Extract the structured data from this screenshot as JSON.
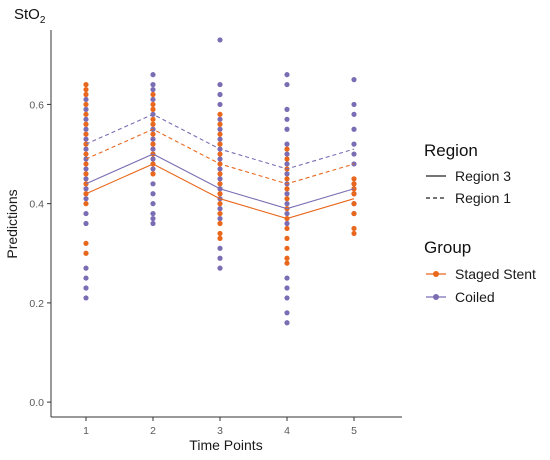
{
  "chart_data": {
    "type": "line",
    "title": "StO",
    "title_subscript": "2",
    "xlabel": "Time Points",
    "ylabel": "Predictions",
    "x_ticks": [
      "1",
      "2",
      "3",
      "4",
      "5"
    ],
    "y_ticks": [
      "0.0",
      "0.2",
      "0.4",
      "0.6"
    ],
    "ylim": [
      -0.03,
      0.75
    ],
    "grid": false,
    "legend_position": "right",
    "colors": {
      "staged_stent": "#E8671C",
      "coiled": "#7B6DB3"
    },
    "legends": {
      "region": {
        "title": "Region",
        "items": [
          "Region 3",
          "Region 1"
        ]
      },
      "group": {
        "title": "Group",
        "items": [
          "Staged Stent",
          "Coiled"
        ]
      }
    },
    "lines": [
      {
        "group": "Staged Stent",
        "region": "Region 3",
        "x": [
          1,
          2,
          3,
          4,
          5
        ],
        "y": [
          0.42,
          0.48,
          0.41,
          0.37,
          0.41
        ]
      },
      {
        "group": "Coiled",
        "region": "Region 3",
        "x": [
          1,
          2,
          3,
          4,
          5
        ],
        "y": [
          0.44,
          0.5,
          0.43,
          0.39,
          0.43
        ]
      },
      {
        "group": "Staged Stent",
        "region": "Region 1",
        "x": [
          1,
          2,
          3,
          4,
          5
        ],
        "y": [
          0.49,
          0.55,
          0.48,
          0.44,
          0.48
        ]
      },
      {
        "group": "Coiled",
        "region": "Region 1",
        "x": [
          1,
          2,
          3,
          4,
          5
        ],
        "y": [
          0.52,
          0.58,
          0.51,
          0.47,
          0.51
        ]
      }
    ],
    "points": {
      "Staged Stent": [
        {
          "x": 1,
          "y": 0.64
        },
        {
          "x": 1,
          "y": 0.63
        },
        {
          "x": 1,
          "y": 0.62
        },
        {
          "x": 1,
          "y": 0.6
        },
        {
          "x": 1,
          "y": 0.58
        },
        {
          "x": 1,
          "y": 0.56
        },
        {
          "x": 1,
          "y": 0.54
        },
        {
          "x": 1,
          "y": 0.52
        },
        {
          "x": 1,
          "y": 0.5
        },
        {
          "x": 1,
          "y": 0.48
        },
        {
          "x": 1,
          "y": 0.46
        },
        {
          "x": 1,
          "y": 0.44
        },
        {
          "x": 1,
          "y": 0.42
        },
        {
          "x": 1,
          "y": 0.4
        },
        {
          "x": 1,
          "y": 0.32
        },
        {
          "x": 1,
          "y": 0.3
        },
        {
          "x": 2,
          "y": 0.62
        },
        {
          "x": 2,
          "y": 0.6
        },
        {
          "x": 2,
          "y": 0.59
        },
        {
          "x": 2,
          "y": 0.57
        },
        {
          "x": 2,
          "y": 0.56
        },
        {
          "x": 2,
          "y": 0.54
        },
        {
          "x": 2,
          "y": 0.52
        },
        {
          "x": 2,
          "y": 0.5
        },
        {
          "x": 2,
          "y": 0.48
        },
        {
          "x": 2,
          "y": 0.46
        },
        {
          "x": 3,
          "y": 0.58
        },
        {
          "x": 3,
          "y": 0.56
        },
        {
          "x": 3,
          "y": 0.54
        },
        {
          "x": 3,
          "y": 0.52
        },
        {
          "x": 3,
          "y": 0.5
        },
        {
          "x": 3,
          "y": 0.48
        },
        {
          "x": 3,
          "y": 0.46
        },
        {
          "x": 3,
          "y": 0.44
        },
        {
          "x": 3,
          "y": 0.42
        },
        {
          "x": 3,
          "y": 0.4
        },
        {
          "x": 3,
          "y": 0.38
        },
        {
          "x": 3,
          "y": 0.36
        },
        {
          "x": 3,
          "y": 0.34
        },
        {
          "x": 3,
          "y": 0.33
        },
        {
          "x": 4,
          "y": 0.51
        },
        {
          "x": 4,
          "y": 0.49
        },
        {
          "x": 4,
          "y": 0.47
        },
        {
          "x": 4,
          "y": 0.45
        },
        {
          "x": 4,
          "y": 0.43
        },
        {
          "x": 4,
          "y": 0.41
        },
        {
          "x": 4,
          "y": 0.39
        },
        {
          "x": 4,
          "y": 0.37
        },
        {
          "x": 4,
          "y": 0.35
        },
        {
          "x": 4,
          "y": 0.33
        },
        {
          "x": 4,
          "y": 0.31
        },
        {
          "x": 4,
          "y": 0.29
        },
        {
          "x": 4,
          "y": 0.28
        },
        {
          "x": 5,
          "y": 0.45
        },
        {
          "x": 5,
          "y": 0.44
        },
        {
          "x": 5,
          "y": 0.43
        },
        {
          "x": 5,
          "y": 0.42
        },
        {
          "x": 5,
          "y": 0.4
        },
        {
          "x": 5,
          "y": 0.38
        },
        {
          "x": 5,
          "y": 0.35
        },
        {
          "x": 5,
          "y": 0.34
        }
      ],
      "Coiled": [
        {
          "x": 1,
          "y": 0.61
        },
        {
          "x": 1,
          "y": 0.59
        },
        {
          "x": 1,
          "y": 0.57
        },
        {
          "x": 1,
          "y": 0.55
        },
        {
          "x": 1,
          "y": 0.53
        },
        {
          "x": 1,
          "y": 0.51
        },
        {
          "x": 1,
          "y": 0.49
        },
        {
          "x": 1,
          "y": 0.47
        },
        {
          "x": 1,
          "y": 0.45
        },
        {
          "x": 1,
          "y": 0.43
        },
        {
          "x": 1,
          "y": 0.41
        },
        {
          "x": 1,
          "y": 0.38
        },
        {
          "x": 1,
          "y": 0.36
        },
        {
          "x": 1,
          "y": 0.27
        },
        {
          "x": 1,
          "y": 0.25
        },
        {
          "x": 1,
          "y": 0.23
        },
        {
          "x": 1,
          "y": 0.21
        },
        {
          "x": 2,
          "y": 0.66
        },
        {
          "x": 2,
          "y": 0.64
        },
        {
          "x": 2,
          "y": 0.63
        },
        {
          "x": 2,
          "y": 0.61
        },
        {
          "x": 2,
          "y": 0.58
        },
        {
          "x": 2,
          "y": 0.55
        },
        {
          "x": 2,
          "y": 0.53
        },
        {
          "x": 2,
          "y": 0.51
        },
        {
          "x": 2,
          "y": 0.49
        },
        {
          "x": 2,
          "y": 0.47
        },
        {
          "x": 2,
          "y": 0.44
        },
        {
          "x": 2,
          "y": 0.42
        },
        {
          "x": 2,
          "y": 0.4
        },
        {
          "x": 2,
          "y": 0.38
        },
        {
          "x": 2,
          "y": 0.37
        },
        {
          "x": 2,
          "y": 0.36
        },
        {
          "x": 3,
          "y": 0.73
        },
        {
          "x": 3,
          "y": 0.64
        },
        {
          "x": 3,
          "y": 0.62
        },
        {
          "x": 3,
          "y": 0.6
        },
        {
          "x": 3,
          "y": 0.57
        },
        {
          "x": 3,
          "y": 0.55
        },
        {
          "x": 3,
          "y": 0.53
        },
        {
          "x": 3,
          "y": 0.51
        },
        {
          "x": 3,
          "y": 0.49
        },
        {
          "x": 3,
          "y": 0.47
        },
        {
          "x": 3,
          "y": 0.45
        },
        {
          "x": 3,
          "y": 0.43
        },
        {
          "x": 3,
          "y": 0.41
        },
        {
          "x": 3,
          "y": 0.39
        },
        {
          "x": 3,
          "y": 0.37
        },
        {
          "x": 3,
          "y": 0.31
        },
        {
          "x": 3,
          "y": 0.29
        },
        {
          "x": 3,
          "y": 0.27
        },
        {
          "x": 4,
          "y": 0.66
        },
        {
          "x": 4,
          "y": 0.64
        },
        {
          "x": 4,
          "y": 0.59
        },
        {
          "x": 4,
          "y": 0.57
        },
        {
          "x": 4,
          "y": 0.55
        },
        {
          "x": 4,
          "y": 0.52
        },
        {
          "x": 4,
          "y": 0.5
        },
        {
          "x": 4,
          "y": 0.48
        },
        {
          "x": 4,
          "y": 0.46
        },
        {
          "x": 4,
          "y": 0.44
        },
        {
          "x": 4,
          "y": 0.42
        },
        {
          "x": 4,
          "y": 0.4
        },
        {
          "x": 4,
          "y": 0.38
        },
        {
          "x": 4,
          "y": 0.36
        },
        {
          "x": 4,
          "y": 0.25
        },
        {
          "x": 4,
          "y": 0.23
        },
        {
          "x": 4,
          "y": 0.21
        },
        {
          "x": 4,
          "y": 0.18
        },
        {
          "x": 4,
          "y": 0.16
        },
        {
          "x": 5,
          "y": 0.65
        },
        {
          "x": 5,
          "y": 0.6
        },
        {
          "x": 5,
          "y": 0.58
        },
        {
          "x": 5,
          "y": 0.55
        },
        {
          "x": 5,
          "y": 0.52
        },
        {
          "x": 5,
          "y": 0.5
        },
        {
          "x": 5,
          "y": 0.48
        },
        {
          "x": 5,
          "y": 0.44
        },
        {
          "x": 5,
          "y": 0.42
        },
        {
          "x": 5,
          "y": 0.4
        },
        {
          "x": 5,
          "y": 0.38
        }
      ]
    }
  }
}
